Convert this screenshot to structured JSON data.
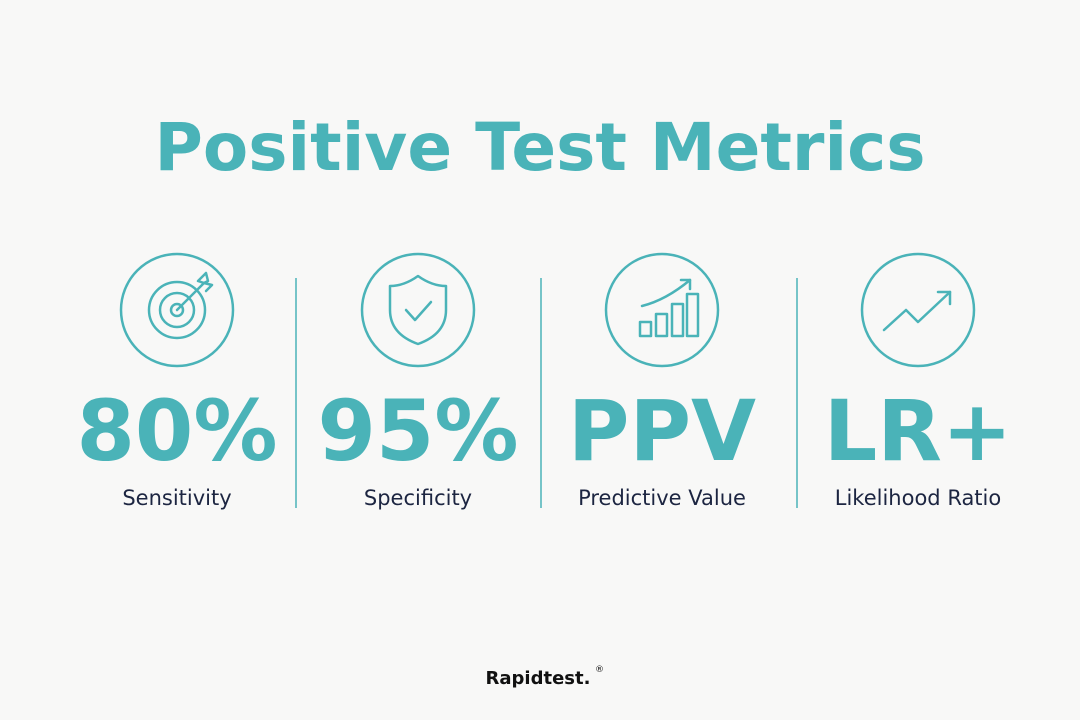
{
  "header": {
    "title": "Positive Test Metrics"
  },
  "metrics": [
    {
      "value": "80%",
      "label": "Sensitivity"
    },
    {
      "value": "95%",
      "label": "Specificity"
    },
    {
      "value": "PPV",
      "label": "Predictive Value"
    },
    {
      "value": "LR+",
      "label": "Likelihood Ratio"
    }
  ],
  "footer": {
    "brand": "Rapidtest.",
    "mark": "®"
  }
}
